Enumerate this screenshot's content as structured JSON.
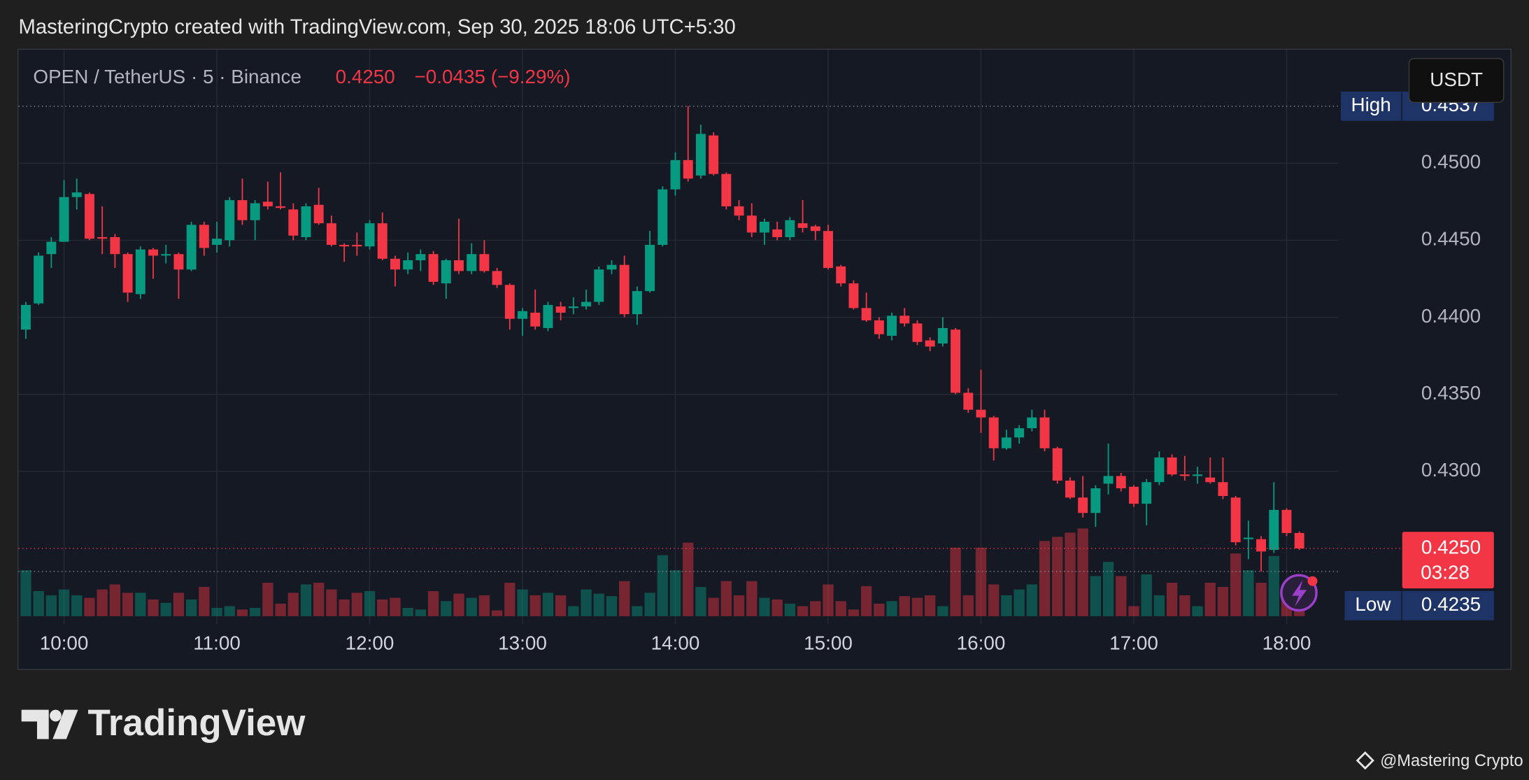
{
  "header": "MasteringCrypto created with TradingView.com, Sep 30, 2025 18:06 UTC+5:30",
  "chart_data": {
    "type": "candlestick",
    "symbol": "OPEN / TetherUS · 5 · Binance",
    "change": "−0.0435 (−9.29%)",
    "currency": "USDT",
    "x": [
      "9:45",
      "9:50",
      "9:55",
      "10:00",
      "10:05",
      "10:10",
      "10:15",
      "10:20",
      "10:25",
      "10:30",
      "10:35",
      "10:40",
      "10:45",
      "10:50",
      "10:55",
      "11:00",
      "11:05",
      "11:10",
      "11:15",
      "11:20",
      "11:25",
      "11:30",
      "11:35",
      "11:40",
      "11:45",
      "11:50",
      "11:55",
      "12:00",
      "12:05",
      "12:10",
      "12:15",
      "12:20",
      "12:25",
      "12:30",
      "12:35",
      "12:40",
      "12:45",
      "12:50",
      "12:55",
      "13:00",
      "13:05",
      "13:10",
      "13:15",
      "13:20",
      "13:25",
      "13:30",
      "13:35",
      "13:40",
      "13:45",
      "13:50",
      "13:55",
      "14:00",
      "14:05",
      "14:10",
      "14:15",
      "14:20",
      "14:25",
      "14:30",
      "14:35",
      "14:40",
      "14:45",
      "14:50",
      "14:55",
      "15:00",
      "15:05",
      "15:10",
      "15:15",
      "15:20",
      "15:25",
      "15:30",
      "15:35",
      "15:40",
      "15:45",
      "15:50",
      "15:55",
      "16:00",
      "16:05",
      "16:10",
      "16:15",
      "16:20",
      "16:25",
      "16:30",
      "16:35",
      "16:40",
      "16:45",
      "16:50",
      "16:55",
      "17:00",
      "17:05",
      "17:10",
      "17:15",
      "17:20",
      "17:25",
      "17:30",
      "17:35",
      "17:40",
      "17:45",
      "17:50",
      "17:55",
      "18:00",
      "18:05"
    ],
    "open": [
      0.4392,
      0.4409,
      0.4441,
      0.4449,
      0.4478,
      0.448,
      0.4452,
      0.4452,
      0.4441,
      0.4415,
      0.4444,
      0.4441,
      0.4441,
      0.4431,
      0.446,
      0.4447,
      0.445,
      0.4476,
      0.4463,
      0.4475,
      0.4472,
      0.447,
      0.4452,
      0.4473,
      0.4461,
      0.4447,
      0.4447,
      0.4446,
      0.4461,
      0.4438,
      0.4431,
      0.4437,
      0.4441,
      0.4422,
      0.4437,
      0.443,
      0.4441,
      0.443,
      0.4421,
      0.4399,
      0.4403,
      0.4393,
      0.4407,
      0.4406,
      0.4407,
      0.441,
      0.4431,
      0.4434,
      0.4402,
      0.4417,
      0.4447,
      0.4483,
      0.4502,
      0.4492,
      0.4518,
      0.4493,
      0.4472,
      0.4466,
      0.4455,
      0.4457,
      0.4452,
      0.4461,
      0.4459,
      0.4456,
      0.4433,
      0.4422,
      0.4406,
      0.4398,
      0.4388,
      0.4401,
      0.4396,
      0.4385,
      0.4383,
      0.4392,
      0.4351,
      0.434,
      0.4335,
      0.4315,
      0.4322,
      0.4328,
      0.4335,
      0.4315,
      0.4294,
      0.4283,
      0.4273,
      0.4292,
      0.4297,
      0.429,
      0.4279,
      0.4293,
      0.4309,
      0.4298,
      0.4297,
      0.4296,
      0.4293,
      0.4283,
      0.4256,
      0.4256,
      0.4249,
      0.4275,
      0.426
    ],
    "high": [
      0.441,
      0.4442,
      0.4452,
      0.4489,
      0.449,
      0.4481,
      0.4472,
      0.4454,
      0.4442,
      0.4446,
      0.4445,
      0.4447,
      0.4442,
      0.4462,
      0.4462,
      0.4462,
      0.4478,
      0.449,
      0.4476,
      0.4488,
      0.4494,
      0.4474,
      0.4474,
      0.4484,
      0.4466,
      0.4448,
      0.4455,
      0.4463,
      0.4468,
      0.444,
      0.4442,
      0.4444,
      0.4443,
      0.4438,
      0.4464,
      0.4448,
      0.445,
      0.4432,
      0.4422,
      0.4406,
      0.4418,
      0.441,
      0.441,
      0.4413,
      0.4418,
      0.4433,
      0.4437,
      0.444,
      0.442,
      0.4456,
      0.4485,
      0.4507,
      0.4537,
      0.4525,
      0.452,
      0.4494,
      0.4476,
      0.4474,
      0.4464,
      0.4462,
      0.4465,
      0.4476,
      0.446,
      0.446,
      0.4434,
      0.4424,
      0.4416,
      0.44,
      0.4403,
      0.4406,
      0.4398,
      0.4387,
      0.44,
      0.4393,
      0.4354,
      0.4366,
      0.4336,
      0.4327,
      0.433,
      0.434,
      0.434,
      0.4316,
      0.4296,
      0.4297,
      0.4291,
      0.4318,
      0.4299,
      0.4291,
      0.4295,
      0.4313,
      0.4311,
      0.431,
      0.4303,
      0.4309,
      0.4309,
      0.4284,
      0.4268,
      0.4258,
      0.4293,
      0.4276,
      0.4261
    ],
    "low": [
      0.4386,
      0.4408,
      0.4432,
      0.4449,
      0.447,
      0.445,
      0.4441,
      0.4432,
      0.441,
      0.4412,
      0.4425,
      0.4435,
      0.4412,
      0.443,
      0.444,
      0.4442,
      0.4446,
      0.446,
      0.445,
      0.447,
      0.447,
      0.445,
      0.445,
      0.446,
      0.4446,
      0.4436,
      0.444,
      0.4444,
      0.4437,
      0.442,
      0.4428,
      0.443,
      0.4421,
      0.4412,
      0.4428,
      0.4428,
      0.4429,
      0.4419,
      0.4392,
      0.4388,
      0.4392,
      0.4391,
      0.4398,
      0.4402,
      0.4405,
      0.4408,
      0.4428,
      0.44,
      0.4395,
      0.4416,
      0.4446,
      0.4479,
      0.4488,
      0.449,
      0.4492,
      0.447,
      0.4463,
      0.4452,
      0.4447,
      0.445,
      0.445,
      0.4455,
      0.445,
      0.4431,
      0.442,
      0.4405,
      0.4397,
      0.4386,
      0.4385,
      0.4394,
      0.4382,
      0.4378,
      0.4381,
      0.435,
      0.4338,
      0.4325,
      0.4307,
      0.4314,
      0.4318,
      0.4326,
      0.4313,
      0.4292,
      0.4282,
      0.427,
      0.4264,
      0.4285,
      0.4287,
      0.4277,
      0.4265,
      0.4291,
      0.4297,
      0.4294,
      0.4292,
      0.4292,
      0.4282,
      0.4252,
      0.4243,
      0.4235,
      0.4247,
      0.4258,
      0.4249
    ],
    "close": [
      0.4408,
      0.444,
      0.4449,
      0.4478,
      0.4481,
      0.4451,
      0.4451,
      0.4441,
      0.4416,
      0.4444,
      0.444,
      0.4441,
      0.4431,
      0.446,
      0.4445,
      0.4451,
      0.4476,
      0.4463,
      0.4474,
      0.4472,
      0.4471,
      0.4453,
      0.4472,
      0.4461,
      0.4447,
      0.4446,
      0.4446,
      0.4461,
      0.4438,
      0.4431,
      0.4437,
      0.4441,
      0.4423,
      0.4437,
      0.443,
      0.4441,
      0.443,
      0.4421,
      0.4399,
      0.4404,
      0.4394,
      0.4408,
      0.4403,
      0.4407,
      0.441,
      0.4431,
      0.4434,
      0.4402,
      0.4417,
      0.4447,
      0.4483,
      0.4502,
      0.449,
      0.4519,
      0.4493,
      0.4472,
      0.4466,
      0.4455,
      0.4462,
      0.4452,
      0.4463,
      0.4458,
      0.4456,
      0.4432,
      0.4422,
      0.4406,
      0.4398,
      0.4389,
      0.4401,
      0.4396,
      0.4384,
      0.4381,
      0.4393,
      0.4351,
      0.434,
      0.4335,
      0.4315,
      0.4322,
      0.4328,
      0.4335,
      0.4315,
      0.4294,
      0.4283,
      0.4273,
      0.4289,
      0.4297,
      0.4289,
      0.4279,
      0.4293,
      0.4309,
      0.4298,
      0.4297,
      0.4298,
      0.4293,
      0.4284,
      0.4254,
      0.4257,
      0.4248,
      0.4275,
      0.426,
      0.425
    ],
    "volume": [
      55,
      30,
      25,
      32,
      25,
      22,
      32,
      38,
      28,
      28,
      20,
      16,
      28,
      20,
      35,
      10,
      12,
      8,
      10,
      40,
      15,
      28,
      38,
      40,
      32,
      20,
      28,
      30,
      20,
      22,
      10,
      8,
      30,
      18,
      27,
      22,
      25,
      7,
      40,
      32,
      25,
      28,
      25,
      12,
      32,
      27,
      24,
      42,
      12,
      28,
      73,
      55,
      88,
      35,
      22,
      42,
      25,
      42,
      22,
      20,
      15,
      12,
      18,
      38,
      18,
      8,
      36,
      15,
      18,
      24,
      22,
      25,
      12,
      82,
      25,
      82,
      38,
      25,
      32,
      38,
      90,
      95,
      100,
      105,
      48,
      65,
      48,
      12,
      50,
      25,
      40,
      25,
      12,
      40,
      35,
      75,
      55,
      40,
      72,
      20,
      20
    ],
    "up_color": "#089981",
    "down_color": "#f23645",
    "ylim": [
      0.4206,
      0.4573
    ],
    "yticks": [
      {
        "value": 0.43,
        "label": "0.4300"
      },
      {
        "value": 0.435,
        "label": "0.4350"
      },
      {
        "value": 0.44,
        "label": "0.4400"
      },
      {
        "value": 0.445,
        "label": "0.4450"
      },
      {
        "value": 0.45,
        "label": "0.4500"
      }
    ],
    "xticks": [
      "10:00",
      "11:00",
      "12:00",
      "13:00",
      "14:00",
      "15:00",
      "16:00",
      "17:00",
      "18:00"
    ],
    "grid": true,
    "high_line": {
      "label": "High",
      "value": 0.4537,
      "value_label": "0.4537"
    },
    "low_line": {
      "label": "Low",
      "value": 0.4235,
      "value_label": "0.4235"
    },
    "last_price": {
      "value": 0.425,
      "value_label": "0.4250",
      "countdown": "03:28"
    }
  },
  "footer": {
    "logo": "TradingView",
    "credit": "@Mastering Crypto"
  }
}
